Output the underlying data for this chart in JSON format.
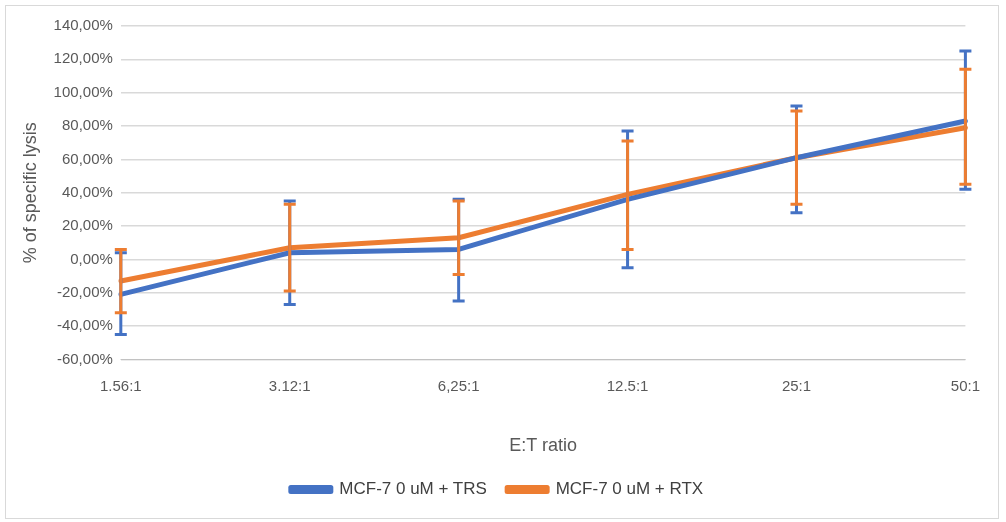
{
  "chart_data": {
    "type": "line",
    "xlabel": "E:T ratio",
    "ylabel": "% of specific lysis",
    "categories": [
      "1.56:1",
      "3.12:1",
      "6,25:1",
      "12.5:1",
      "25:1",
      "50:1"
    ],
    "series": [
      {
        "name": "MCF-7 0 uM + TRS",
        "color": "#4472c4",
        "values": [
          -21,
          4,
          6,
          36,
          61,
          83
        ],
        "errors": [
          [
            -45,
            4
          ],
          [
            -27,
            35
          ],
          [
            -25,
            36
          ],
          [
            -5,
            77
          ],
          [
            28,
            92
          ],
          [
            42,
            125
          ]
        ]
      },
      {
        "name": "MCF-7 0 uM + RTX",
        "color": "#ed7d31",
        "values": [
          -13,
          7,
          13,
          39,
          61,
          79
        ],
        "errors": [
          [
            -32,
            6
          ],
          [
            -19,
            33
          ],
          [
            -9,
            35
          ],
          [
            6,
            71
          ],
          [
            33,
            89
          ],
          [
            45,
            114
          ]
        ]
      }
    ],
    "ylim": [
      -60,
      140
    ],
    "yticks": [
      {
        "value": -60,
        "label": "-60,00%"
      },
      {
        "value": -40,
        "label": "-40,00%"
      },
      {
        "value": -20,
        "label": "-20,00%"
      },
      {
        "value": 0,
        "label": "0,00%"
      },
      {
        "value": 20,
        "label": "20,00%"
      },
      {
        "value": 40,
        "label": "40,00%"
      },
      {
        "value": 60,
        "label": "60,00%"
      },
      {
        "value": 80,
        "label": "80,00%"
      },
      {
        "value": 100,
        "label": "100,00%"
      },
      {
        "value": 120,
        "label": "120,00%"
      },
      {
        "value": 140,
        "label": "140,00%"
      }
    ],
    "grid": "y",
    "legend": "bottom",
    "marker": "none",
    "line_style": "solid"
  }
}
